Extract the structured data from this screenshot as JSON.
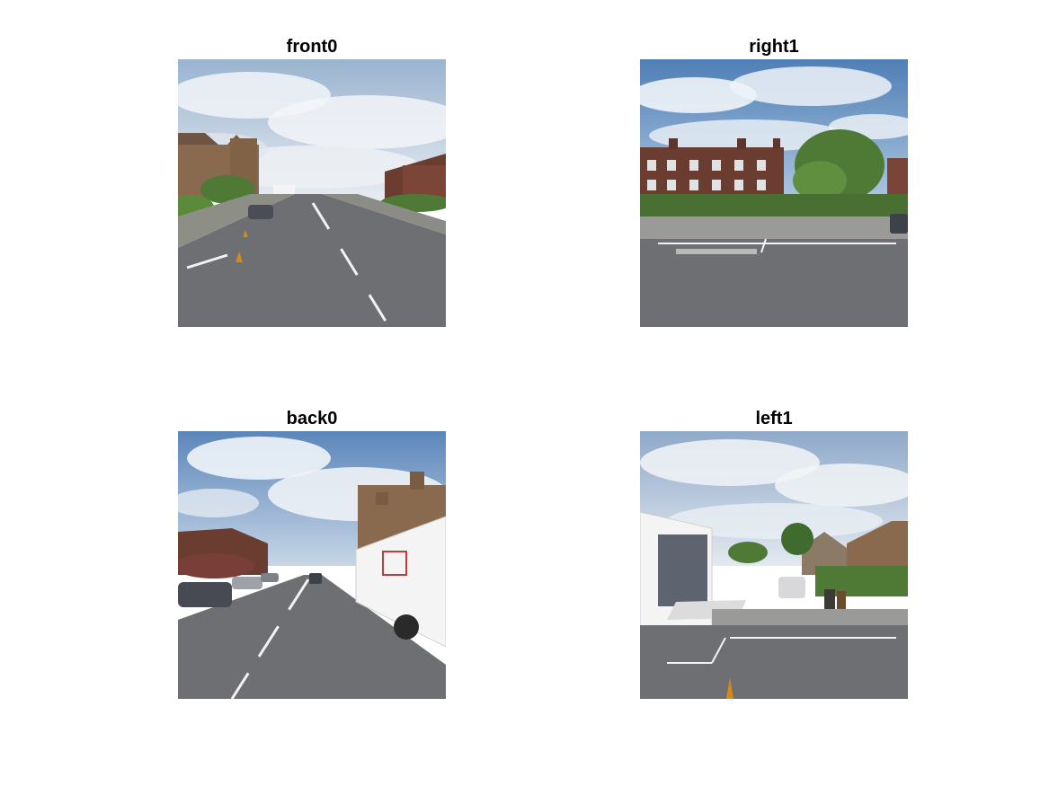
{
  "panels": [
    {
      "title": "front0"
    },
    {
      "title": "right1"
    },
    {
      "title": "back0"
    },
    {
      "title": "left1"
    }
  ],
  "colors": {
    "sky": "#8fb3d9",
    "cloud": "#eef2f7",
    "road": "#6e6f72",
    "sandstone": "#8a6a4f",
    "brick": "#6b3d30",
    "foliage": "#4f7a35",
    "pavement": "#9a9a98",
    "truck": "#f4f4f4"
  }
}
